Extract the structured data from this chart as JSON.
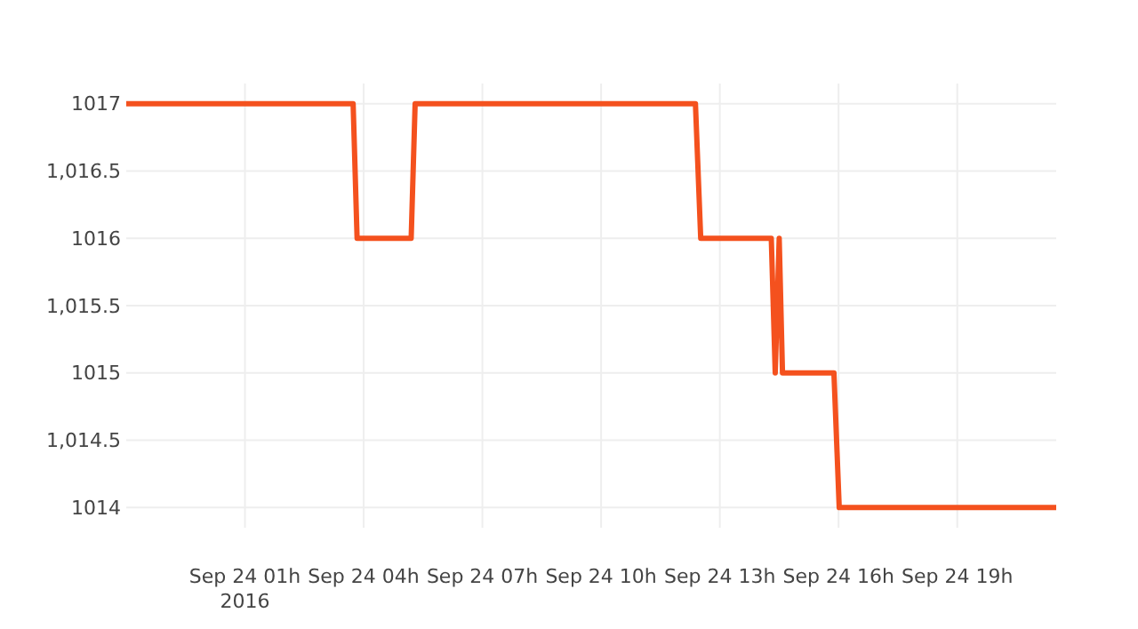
{
  "chart_data": {
    "type": "line",
    "x": [
      "2016-09-23T22:00",
      "2016-09-24T03:44",
      "2016-09-24T03:50",
      "2016-09-24T05:12",
      "2016-09-24T05:18",
      "2016-09-24T12:23",
      "2016-09-24T12:31",
      "2016-09-24T14:18",
      "2016-09-24T14:24",
      "2016-09-24T14:30",
      "2016-09-24T14:35",
      "2016-09-24T15:53",
      "2016-09-24T16:01",
      "2016-09-24T21:30"
    ],
    "series": [
      {
        "color": "#f4511e",
        "values": [
          1017,
          1017,
          1016,
          1016,
          1017,
          1017,
          1016,
          1016,
          1015,
          1016,
          1015,
          1015,
          1014,
          1014
        ]
      }
    ],
    "xlim": [
      "2016-09-23T22:00",
      "2016-09-24T21:30"
    ],
    "xticks": [
      {
        "value": "2016-09-24T01:00",
        "label": "Sep 24 01h\n2016"
      },
      {
        "value": "2016-09-24T04:00",
        "label": "Sep 24 04h"
      },
      {
        "value": "2016-09-24T07:00",
        "label": "Sep 24 07h"
      },
      {
        "value": "2016-09-24T10:00",
        "label": "Sep 24 10h"
      },
      {
        "value": "2016-09-24T13:00",
        "label": "Sep 24 13h"
      },
      {
        "value": "2016-09-24T16:00",
        "label": "Sep 24 16h"
      },
      {
        "value": "2016-09-24T19:00",
        "label": "Sep 24 19h"
      }
    ],
    "ylim": [
      1013.85,
      1017.15
    ],
    "yticks": [
      1014,
      {
        "value": 1014.5,
        "label": "1,014.5"
      },
      1015,
      {
        "value": 1015.5,
        "label": "1,015.5"
      },
      1016,
      {
        "value": 1016.5,
        "label": "1,016.5"
      },
      1017
    ],
    "grid": true,
    "marker": "none",
    "line_style": "solid"
  }
}
